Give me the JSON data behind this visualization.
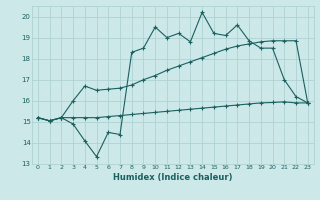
{
  "xlabel": "Humidex (Indice chaleur)",
  "background_color": "#cde8e8",
  "grid_color": "#aacece",
  "line_color": "#1a6060",
  "xlim": [
    -0.5,
    23.5
  ],
  "ylim": [
    13,
    20.5
  ],
  "yticks": [
    13,
    14,
    15,
    16,
    17,
    18,
    19,
    20
  ],
  "xticks": [
    0,
    1,
    2,
    3,
    4,
    5,
    6,
    7,
    8,
    9,
    10,
    11,
    12,
    13,
    14,
    15,
    16,
    17,
    18,
    19,
    20,
    21,
    22,
    23
  ],
  "line1_x": [
    0,
    1,
    2,
    3,
    4,
    5,
    6,
    7,
    8,
    9,
    10,
    11,
    12,
    13,
    14,
    15,
    16,
    17,
    18,
    19,
    20,
    21,
    22,
    23
  ],
  "line1_y": [
    15.2,
    15.05,
    15.2,
    15.2,
    15.2,
    15.2,
    15.25,
    15.3,
    15.35,
    15.4,
    15.45,
    15.5,
    15.55,
    15.6,
    15.65,
    15.7,
    15.75,
    15.8,
    15.85,
    15.9,
    15.92,
    15.95,
    15.9,
    15.9
  ],
  "line2_x": [
    0,
    1,
    2,
    3,
    4,
    5,
    6,
    7,
    8,
    9,
    10,
    11,
    12,
    13,
    14,
    15,
    16,
    17,
    18,
    19,
    20,
    21,
    22,
    23
  ],
  "line2_y": [
    15.2,
    15.05,
    15.2,
    16.0,
    16.7,
    16.5,
    16.55,
    16.6,
    16.75,
    17.0,
    17.2,
    17.45,
    17.65,
    17.85,
    18.05,
    18.25,
    18.45,
    18.6,
    18.7,
    18.8,
    18.85,
    18.85,
    18.85,
    15.9
  ],
  "line3_x": [
    0,
    1,
    2,
    3,
    4,
    5,
    6,
    7,
    8,
    9,
    10,
    11,
    12,
    13,
    14,
    15,
    16,
    17,
    18,
    19,
    20,
    21,
    22,
    23
  ],
  "line3_y": [
    15.2,
    15.05,
    15.2,
    14.9,
    14.1,
    13.35,
    14.5,
    14.4,
    18.3,
    18.5,
    19.5,
    19.0,
    19.2,
    18.8,
    20.2,
    19.2,
    19.1,
    19.6,
    18.85,
    18.5,
    18.5,
    17.0,
    16.2,
    15.9
  ]
}
